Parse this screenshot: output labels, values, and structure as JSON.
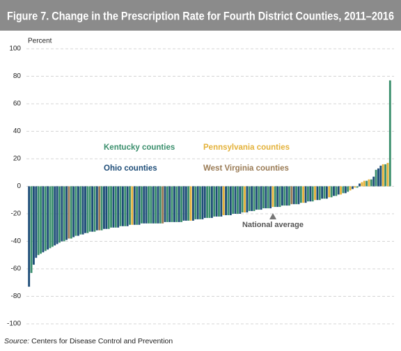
{
  "chart_data": {
    "type": "bar",
    "title": "Figure 7. Change in the Prescription Rate for Fourth District Counties, 2011–2016",
    "y_label": "Percent",
    "ylim": [
      -100,
      100
    ],
    "yticks": [
      100,
      80,
      60,
      40,
      20,
      0,
      -20,
      -40,
      -60,
      -80,
      -100
    ],
    "grid": true,
    "legend": [
      {
        "name": "Kentucky counties",
        "color": "#3b8f6d"
      },
      {
        "name": "Pennsylvania counties",
        "color": "#e4b23a"
      },
      {
        "name": "Ohio counties",
        "color": "#1e4d78"
      },
      {
        "name": "West Virginia counties",
        "color": "#9a7b55"
      }
    ],
    "annotation": "National average",
    "source": {
      "label": "Source:",
      "text": "Centers for Disease Control and Prevention"
    },
    "values": [
      -73,
      -63,
      -57,
      -52,
      -50,
      -49,
      -48,
      -47,
      -46,
      -45,
      -44,
      -43,
      -42,
      -41,
      -40,
      -40,
      -39,
      -38,
      -38,
      -37,
      -36,
      -36,
      -35,
      -35,
      -34,
      -34,
      -33,
      -33,
      -33,
      -32,
      -32,
      -32,
      -31,
      -31,
      -31,
      -30,
      -30,
      -30,
      -30,
      -29,
      -29,
      -29,
      -29,
      -28,
      -28,
      -28,
      -28,
      -28,
      -27,
      -27,
      -27,
      -27,
      -27,
      -27,
      -27,
      -27,
      -27,
      -27,
      -26,
      -26,
      -26,
      -26,
      -26,
      -26,
      -26,
      -26,
      -25,
      -25,
      -25,
      -25,
      -25,
      -24,
      -24,
      -24,
      -24,
      -23,
      -23,
      -23,
      -23,
      -22,
      -22,
      -22,
      -22,
      -21,
      -21,
      -21,
      -21,
      -20,
      -20,
      -20,
      -20,
      -19,
      -19,
      -19,
      -18,
      -18,
      -18,
      -17,
      -17,
      -17,
      -16,
      -16,
      -16,
      -16,
      -15,
      -15,
      -15,
      -15,
      -14,
      -14,
      -14,
      -14,
      -13,
      -13,
      -13,
      -13,
      -12,
      -12,
      -12,
      -11,
      -11,
      -11,
      -10,
      -10,
      -10,
      -9,
      -9,
      -9,
      -8,
      -8,
      -7,
      -7,
      -6,
      -6,
      -5,
      -5,
      -4,
      -3,
      -2,
      -1,
      -1,
      2,
      3,
      4,
      4,
      5,
      5,
      7,
      12,
      13,
      15,
      16,
      16,
      17,
      77
    ],
    "colors": [
      "#1e4d78",
      "#3b8f6d",
      "#1e4d78",
      "#1e4d78",
      "#3b8f6d",
      "#3b8f6d",
      "#1e4d78",
      "#3b8f6d",
      "#1e4d78",
      "#3b8f6d",
      "#3b8f6d",
      "#1e4d78",
      "#1e4d78",
      "#3b8f6d",
      "#1e4d78",
      "#3b8f6d",
      "#1e4d78",
      "#9a7b55",
      "#3b8f6d",
      "#1e4d78",
      "#3b8f6d",
      "#1e4d78",
      "#3b8f6d",
      "#1e4d78",
      "#1e4d78",
      "#3b8f6d",
      "#3b8f6d",
      "#1e4d78",
      "#3b8f6d",
      "#1e4d78",
      "#9a7b55",
      "#3b8f6d",
      "#1e4d78",
      "#1e4d78",
      "#3b8f6d",
      "#3b8f6d",
      "#1e4d78",
      "#3b8f6d",
      "#1e4d78",
      "#3b8f6d",
      "#1e4d78",
      "#3b8f6d",
      "#1e4d78",
      "#3b8f6d",
      "#e4b23a",
      "#1e4d78",
      "#3b8f6d",
      "#1e4d78",
      "#3b8f6d",
      "#1e4d78",
      "#1e4d78",
      "#3b8f6d",
      "#3b8f6d",
      "#1e4d78",
      "#3b8f6d",
      "#1e4d78",
      "#3b8f6d",
      "#9a7b55",
      "#1e4d78",
      "#3b8f6d",
      "#1e4d78",
      "#3b8f6d",
      "#1e4d78",
      "#3b8f6d",
      "#1e4d78",
      "#3b8f6d",
      "#1e4d78",
      "#1e4d78",
      "#3b8f6d",
      "#e4b23a",
      "#1e4d78",
      "#3b8f6d",
      "#1e4d78",
      "#3b8f6d",
      "#1e4d78",
      "#1e4d78",
      "#3b8f6d",
      "#3b8f6d",
      "#1e4d78",
      "#3b8f6d",
      "#1e4d78",
      "#3b8f6d",
      "#1e4d78",
      "#e4b23a",
      "#1e4d78",
      "#3b8f6d",
      "#1e4d78",
      "#3b8f6d",
      "#1e4d78",
      "#3b8f6d",
      "#1e4d78",
      "#3b8f6d",
      "#e4b23a",
      "#1e4d78",
      "#3b8f6d",
      "#1e4d78",
      "#3b8f6d",
      "#1e4d78",
      "#3b8f6d",
      "#1e4d78",
      "#3b8f6d",
      "#1e4d78",
      "#3b8f6d",
      "#1e4d78",
      "#e4b23a",
      "#3b8f6d",
      "#1e4d78",
      "#3b8f6d",
      "#1e4d78",
      "#3b8f6d",
      "#1e4d78",
      "#3b8f6d",
      "#9a7b55",
      "#1e4d78",
      "#3b8f6d",
      "#1e4d78",
      "#3b8f6d",
      "#e4b23a",
      "#1e4d78",
      "#3b8f6d",
      "#1e4d78",
      "#3b8f6d",
      "#e4b23a",
      "#1e4d78",
      "#3b8f6d",
      "#1e4d78",
      "#3b8f6d",
      "#1e4d78",
      "#e4b23a",
      "#3b8f6d",
      "#1e4d78",
      "#3b8f6d",
      "#1e4d78",
      "#e4b23a",
      "#3b8f6d",
      "#1e4d78",
      "#3b8f6d",
      "#e4b23a",
      "#1e4d78",
      "#e4b23a",
      "#3b8f6d",
      "#1e4d78",
      "#e4b23a",
      "#e4b23a",
      "#3b8f6d",
      "#e4b23a",
      "#3b8f6d",
      "#1e4d78",
      "#3b8f6d",
      "#1e4d78",
      "#1e4d78",
      "#e4b23a",
      "#3b8f6d",
      "#e4b23a",
      "#3b8f6d"
    ]
  }
}
